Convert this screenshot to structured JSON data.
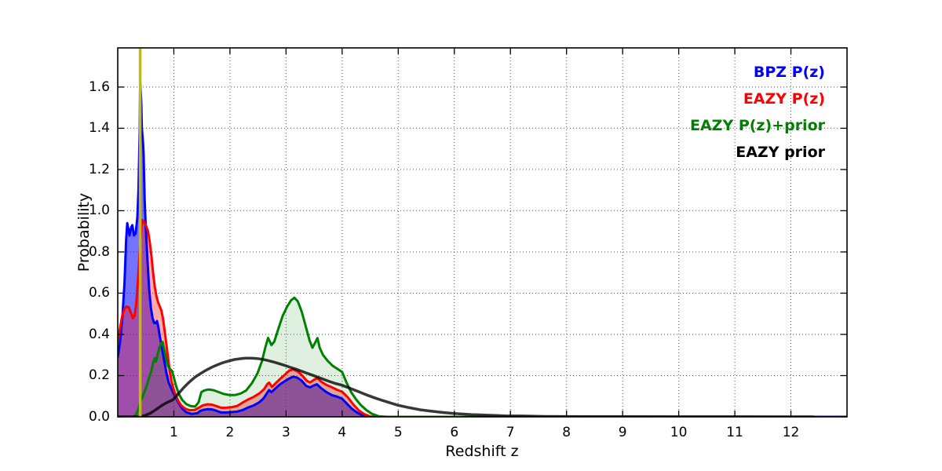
{
  "figure": {
    "xlabel": "Redshift z",
    "ylabel": "Probability"
  },
  "legend": {
    "position": "upper right",
    "entries": [
      {
        "label": "BPZ P(z)",
        "color": "#0000ff"
      },
      {
        "label": "EAZY P(z)",
        "color": "#ff0000"
      },
      {
        "label": "EAZY P(z)+prior",
        "color": "#008000"
      },
      {
        "label": "EAZY prior",
        "color": "#000000"
      }
    ]
  },
  "chart_data": {
    "type": "line",
    "title": "",
    "xlabel": "Redshift z",
    "ylabel": "Probability",
    "xlim": [
      0,
      13
    ],
    "ylim": [
      0,
      1.79
    ],
    "grid": true,
    "x_ticks": [
      1,
      2,
      3,
      4,
      5,
      6,
      7,
      8,
      9,
      10,
      11,
      12
    ],
    "x_tick_labels": [
      "1",
      "2",
      "3",
      "4",
      "5",
      "6",
      "7",
      "8",
      "9",
      "10",
      "11",
      "12"
    ],
    "y_ticks": [
      0,
      0.2,
      0.4,
      0.6,
      0.8,
      1.0,
      1.2,
      1.4,
      1.6
    ],
    "y_tick_labels": [
      "0.0",
      "0.2",
      "0.4",
      "0.6",
      "0.8",
      "1.0",
      "1.2",
      "1.4",
      "1.6"
    ],
    "marker_line": {
      "x": 0.4,
      "color": "#bfbf00"
    },
    "series": [
      {
        "name": "BPZ P(z)",
        "line_color": "#0000ff",
        "fill_color": "rgba(0,0,255,0.55)",
        "line_width": 3,
        "points": [
          [
            0.0,
            0.29
          ],
          [
            0.04,
            0.36
          ],
          [
            0.08,
            0.47
          ],
          [
            0.12,
            0.65
          ],
          [
            0.15,
            0.86
          ],
          [
            0.17,
            0.94
          ],
          [
            0.19,
            0.91
          ],
          [
            0.21,
            0.88
          ],
          [
            0.24,
            0.92
          ],
          [
            0.26,
            0.93
          ],
          [
            0.29,
            0.88
          ],
          [
            0.32,
            0.89
          ],
          [
            0.35,
            0.97
          ],
          [
            0.37,
            1.1
          ],
          [
            0.39,
            1.38
          ],
          [
            0.4,
            1.63
          ],
          [
            0.42,
            1.52
          ],
          [
            0.43,
            1.4
          ],
          [
            0.45,
            1.33
          ],
          [
            0.46,
            1.28
          ],
          [
            0.48,
            1.05
          ],
          [
            0.5,
            0.92
          ],
          [
            0.53,
            0.76
          ],
          [
            0.56,
            0.62
          ],
          [
            0.59,
            0.53
          ],
          [
            0.62,
            0.48
          ],
          [
            0.65,
            0.455
          ],
          [
            0.68,
            0.455
          ],
          [
            0.7,
            0.465
          ],
          [
            0.72,
            0.44
          ],
          [
            0.75,
            0.39
          ],
          [
            0.79,
            0.33
          ],
          [
            0.83,
            0.27
          ],
          [
            0.87,
            0.21
          ],
          [
            0.91,
            0.165
          ],
          [
            0.95,
            0.14
          ],
          [
            1.0,
            0.11
          ],
          [
            1.05,
            0.085
          ],
          [
            1.1,
            0.06
          ],
          [
            1.15,
            0.04
          ],
          [
            1.22,
            0.022
          ],
          [
            1.32,
            0.014
          ],
          [
            1.42,
            0.018
          ],
          [
            1.47,
            0.028
          ],
          [
            1.53,
            0.034
          ],
          [
            1.6,
            0.037
          ],
          [
            1.68,
            0.036
          ],
          [
            1.75,
            0.03
          ],
          [
            1.83,
            0.022
          ],
          [
            1.92,
            0.021
          ],
          [
            2.02,
            0.023
          ],
          [
            2.12,
            0.025
          ],
          [
            2.22,
            0.032
          ],
          [
            2.32,
            0.045
          ],
          [
            2.42,
            0.055
          ],
          [
            2.52,
            0.07
          ],
          [
            2.6,
            0.09
          ],
          [
            2.66,
            0.115
          ],
          [
            2.7,
            0.13
          ],
          [
            2.74,
            0.12
          ],
          [
            2.8,
            0.135
          ],
          [
            2.88,
            0.155
          ],
          [
            2.96,
            0.17
          ],
          [
            3.05,
            0.185
          ],
          [
            3.13,
            0.195
          ],
          [
            3.2,
            0.19
          ],
          [
            3.28,
            0.175
          ],
          [
            3.36,
            0.15
          ],
          [
            3.43,
            0.143
          ],
          [
            3.49,
            0.152
          ],
          [
            3.55,
            0.158
          ],
          [
            3.62,
            0.14
          ],
          [
            3.72,
            0.12
          ],
          [
            3.82,
            0.105
          ],
          [
            3.92,
            0.097
          ],
          [
            4.0,
            0.088
          ],
          [
            4.08,
            0.065
          ],
          [
            4.17,
            0.04
          ],
          [
            4.27,
            0.02
          ],
          [
            4.37,
            0.006
          ],
          [
            4.45,
            0.001
          ],
          [
            4.6,
            0.0
          ],
          [
            13.0,
            0.0
          ]
        ]
      },
      {
        "name": "EAZY P(z)",
        "line_color": "#ff0000",
        "fill_color": "rgba(255,0,0,0.33)",
        "line_width": 3,
        "points": [
          [
            0.0,
            0.36
          ],
          [
            0.04,
            0.43
          ],
          [
            0.08,
            0.49
          ],
          [
            0.12,
            0.525
          ],
          [
            0.16,
            0.535
          ],
          [
            0.2,
            0.53
          ],
          [
            0.24,
            0.5
          ],
          [
            0.27,
            0.478
          ],
          [
            0.3,
            0.49
          ],
          [
            0.33,
            0.55
          ],
          [
            0.36,
            0.66
          ],
          [
            0.39,
            0.8
          ],
          [
            0.42,
            0.92
          ],
          [
            0.44,
            0.955
          ],
          [
            0.47,
            0.945
          ],
          [
            0.5,
            0.93
          ],
          [
            0.54,
            0.9
          ],
          [
            0.57,
            0.85
          ],
          [
            0.6,
            0.78
          ],
          [
            0.63,
            0.7
          ],
          [
            0.66,
            0.63
          ],
          [
            0.69,
            0.585
          ],
          [
            0.72,
            0.555
          ],
          [
            0.75,
            0.535
          ],
          [
            0.78,
            0.515
          ],
          [
            0.81,
            0.47
          ],
          [
            0.84,
            0.41
          ],
          [
            0.87,
            0.345
          ],
          [
            0.9,
            0.28
          ],
          [
            0.93,
            0.215
          ],
          [
            0.96,
            0.17
          ],
          [
            1.0,
            0.13
          ],
          [
            1.04,
            0.1
          ],
          [
            1.08,
            0.077
          ],
          [
            1.13,
            0.055
          ],
          [
            1.2,
            0.04
          ],
          [
            1.28,
            0.032
          ],
          [
            1.37,
            0.033
          ],
          [
            1.45,
            0.045
          ],
          [
            1.52,
            0.056
          ],
          [
            1.6,
            0.061
          ],
          [
            1.68,
            0.059
          ],
          [
            1.76,
            0.052
          ],
          [
            1.84,
            0.044
          ],
          [
            1.93,
            0.044
          ],
          [
            2.03,
            0.047
          ],
          [
            2.13,
            0.053
          ],
          [
            2.23,
            0.07
          ],
          [
            2.33,
            0.085
          ],
          [
            2.43,
            0.098
          ],
          [
            2.53,
            0.115
          ],
          [
            2.61,
            0.135
          ],
          [
            2.67,
            0.16
          ],
          [
            2.7,
            0.166
          ],
          [
            2.75,
            0.145
          ],
          [
            2.81,
            0.162
          ],
          [
            2.89,
            0.183
          ],
          [
            2.98,
            0.205
          ],
          [
            3.06,
            0.225
          ],
          [
            3.13,
            0.23
          ],
          [
            3.21,
            0.22
          ],
          [
            3.29,
            0.2
          ],
          [
            3.37,
            0.175
          ],
          [
            3.43,
            0.167
          ],
          [
            3.5,
            0.18
          ],
          [
            3.56,
            0.188
          ],
          [
            3.63,
            0.17
          ],
          [
            3.72,
            0.155
          ],
          [
            3.82,
            0.143
          ],
          [
            3.92,
            0.13
          ],
          [
            4.0,
            0.122
          ],
          [
            4.1,
            0.095
          ],
          [
            4.2,
            0.06
          ],
          [
            4.3,
            0.03
          ],
          [
            4.4,
            0.012
          ],
          [
            4.5,
            0.002
          ],
          [
            4.62,
            0.0
          ]
        ]
      },
      {
        "name": "EAZY P(z)+prior",
        "line_color": "#008000",
        "fill_color": "rgba(0,128,0,0.12)",
        "line_width": 3,
        "points": [
          [
            0.0,
            0.0
          ],
          [
            0.28,
            0.0
          ],
          [
            0.33,
            0.012
          ],
          [
            0.37,
            0.04
          ],
          [
            0.4,
            0.072
          ],
          [
            0.44,
            0.095
          ],
          [
            0.48,
            0.125
          ],
          [
            0.52,
            0.155
          ],
          [
            0.56,
            0.19
          ],
          [
            0.6,
            0.225
          ],
          [
            0.63,
            0.262
          ],
          [
            0.66,
            0.285
          ],
          [
            0.68,
            0.268
          ],
          [
            0.71,
            0.3
          ],
          [
            0.74,
            0.335
          ],
          [
            0.77,
            0.355
          ],
          [
            0.8,
            0.363
          ],
          [
            0.83,
            0.325
          ],
          [
            0.86,
            0.28
          ],
          [
            0.9,
            0.245
          ],
          [
            0.94,
            0.23
          ],
          [
            0.97,
            0.222
          ],
          [
            1.0,
            0.19
          ],
          [
            1.04,
            0.15
          ],
          [
            1.09,
            0.11
          ],
          [
            1.15,
            0.082
          ],
          [
            1.22,
            0.062
          ],
          [
            1.3,
            0.052
          ],
          [
            1.38,
            0.05
          ],
          [
            1.44,
            0.07
          ],
          [
            1.49,
            0.12
          ],
          [
            1.54,
            0.128
          ],
          [
            1.62,
            0.133
          ],
          [
            1.71,
            0.129
          ],
          [
            1.8,
            0.12
          ],
          [
            1.89,
            0.111
          ],
          [
            1.99,
            0.106
          ],
          [
            2.09,
            0.106
          ],
          [
            2.19,
            0.113
          ],
          [
            2.29,
            0.128
          ],
          [
            2.39,
            0.163
          ],
          [
            2.49,
            0.21
          ],
          [
            2.57,
            0.27
          ],
          [
            2.63,
            0.335
          ],
          [
            2.68,
            0.383
          ],
          [
            2.74,
            0.348
          ],
          [
            2.79,
            0.365
          ],
          [
            2.86,
            0.425
          ],
          [
            2.94,
            0.49
          ],
          [
            3.02,
            0.535
          ],
          [
            3.09,
            0.565
          ],
          [
            3.15,
            0.578
          ],
          [
            3.21,
            0.56
          ],
          [
            3.28,
            0.51
          ],
          [
            3.35,
            0.44
          ],
          [
            3.42,
            0.37
          ],
          [
            3.47,
            0.335
          ],
          [
            3.51,
            0.355
          ],
          [
            3.56,
            0.382
          ],
          [
            3.6,
            0.335
          ],
          [
            3.66,
            0.3
          ],
          [
            3.74,
            0.272
          ],
          [
            3.83,
            0.248
          ],
          [
            3.92,
            0.232
          ],
          [
            4.0,
            0.218
          ],
          [
            4.08,
            0.165
          ],
          [
            4.16,
            0.12
          ],
          [
            4.24,
            0.088
          ],
          [
            4.33,
            0.058
          ],
          [
            4.43,
            0.033
          ],
          [
            4.53,
            0.015
          ],
          [
            4.65,
            0.003
          ],
          [
            4.8,
            0.0
          ],
          [
            12.4,
            0.0
          ]
        ]
      },
      {
        "name": "EAZY prior",
        "line_color": "rgba(0,0,0,0.78)",
        "fill_color": "none",
        "line_width": 3.5,
        "points": [
          [
            0.0,
            0.0
          ],
          [
            0.38,
            0.0
          ],
          [
            0.48,
            0.006
          ],
          [
            0.58,
            0.017
          ],
          [
            0.68,
            0.035
          ],
          [
            0.78,
            0.054
          ],
          [
            0.88,
            0.07
          ],
          [
            0.98,
            0.082
          ],
          [
            1.08,
            0.112
          ],
          [
            1.18,
            0.143
          ],
          [
            1.28,
            0.17
          ],
          [
            1.38,
            0.193
          ],
          [
            1.48,
            0.211
          ],
          [
            1.58,
            0.227
          ],
          [
            1.68,
            0.241
          ],
          [
            1.78,
            0.253
          ],
          [
            1.88,
            0.263
          ],
          [
            1.98,
            0.271
          ],
          [
            2.08,
            0.278
          ],
          [
            2.18,
            0.282
          ],
          [
            2.28,
            0.285
          ],
          [
            2.38,
            0.285
          ],
          [
            2.48,
            0.283
          ],
          [
            2.58,
            0.279
          ],
          [
            2.68,
            0.273
          ],
          [
            2.78,
            0.266
          ],
          [
            2.88,
            0.258
          ],
          [
            2.98,
            0.249
          ],
          [
            3.08,
            0.24
          ],
          [
            3.18,
            0.231
          ],
          [
            3.28,
            0.221
          ],
          [
            3.38,
            0.211
          ],
          [
            3.48,
            0.201
          ],
          [
            3.58,
            0.191
          ],
          [
            3.68,
            0.181
          ],
          [
            3.78,
            0.171
          ],
          [
            3.88,
            0.162
          ],
          [
            3.98,
            0.155
          ],
          [
            4.1,
            0.143
          ],
          [
            4.22,
            0.13
          ],
          [
            4.34,
            0.117
          ],
          [
            4.46,
            0.104
          ],
          [
            4.58,
            0.092
          ],
          [
            4.7,
            0.081
          ],
          [
            4.85,
            0.068
          ],
          [
            5.0,
            0.056
          ],
          [
            5.2,
            0.044
          ],
          [
            5.4,
            0.034
          ],
          [
            5.6,
            0.027
          ],
          [
            5.8,
            0.021
          ],
          [
            6.0,
            0.016
          ],
          [
            6.3,
            0.011
          ],
          [
            6.6,
            0.008
          ],
          [
            6.9,
            0.005
          ],
          [
            7.2,
            0.004
          ],
          [
            7.6,
            0.002
          ],
          [
            8.0,
            0.0015
          ],
          [
            8.5,
            0.001
          ],
          [
            9.0,
            0.0007
          ],
          [
            10.0,
            0.0004
          ],
          [
            11.0,
            0.0002
          ],
          [
            12.0,
            0.0001
          ],
          [
            12.4,
            0.0001
          ]
        ]
      }
    ]
  }
}
